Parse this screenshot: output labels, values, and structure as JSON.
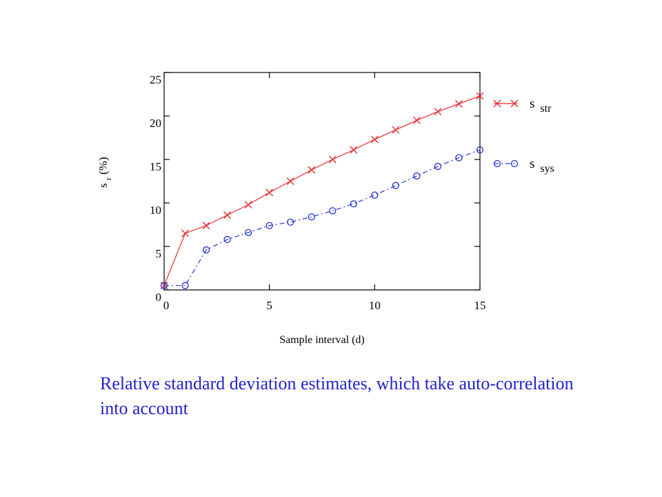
{
  "chart_data": {
    "type": "line",
    "xlabel": "Sample interval (d)",
    "ylabel_main": "s",
    "ylabel_sub": "r",
    "ylabel_rest": " (%)",
    "xlim": [
      0,
      15
    ],
    "ylim": [
      0,
      25
    ],
    "xticks": [
      0,
      5,
      10,
      15
    ],
    "yticks": [
      0,
      5,
      10,
      15,
      20,
      25
    ],
    "grid": false,
    "legend_position": "right",
    "series": [
      {
        "legend_main": "s",
        "legend_sub": "str",
        "color": "#e8262a",
        "line_style": "solid",
        "marker": "x",
        "x": [
          0,
          1,
          2,
          3,
          4,
          5,
          6,
          7,
          8,
          9,
          10,
          11,
          12,
          13,
          14,
          15
        ],
        "y": [
          0.5,
          6.5,
          7.4,
          8.6,
          9.8,
          11.2,
          12.5,
          13.8,
          15.0,
          16.1,
          17.3,
          18.4,
          19.5,
          20.5,
          21.4,
          22.3
        ]
      },
      {
        "legend_main": "s",
        "legend_sub": "sys",
        "color": "#2233cc",
        "line_style": "dashdot",
        "marker": "o",
        "x": [
          0,
          1,
          2,
          3,
          4,
          5,
          6,
          7,
          8,
          9,
          10,
          11,
          12,
          13,
          14,
          15
        ],
        "y": [
          0.5,
          0.5,
          4.6,
          5.8,
          6.6,
          7.4,
          7.8,
          8.4,
          9.1,
          9.9,
          10.9,
          12.0,
          13.1,
          14.2,
          15.2,
          16.1
        ]
      }
    ]
  },
  "caption": "Relative standard deviation estimates, which take auto-correlation into account"
}
